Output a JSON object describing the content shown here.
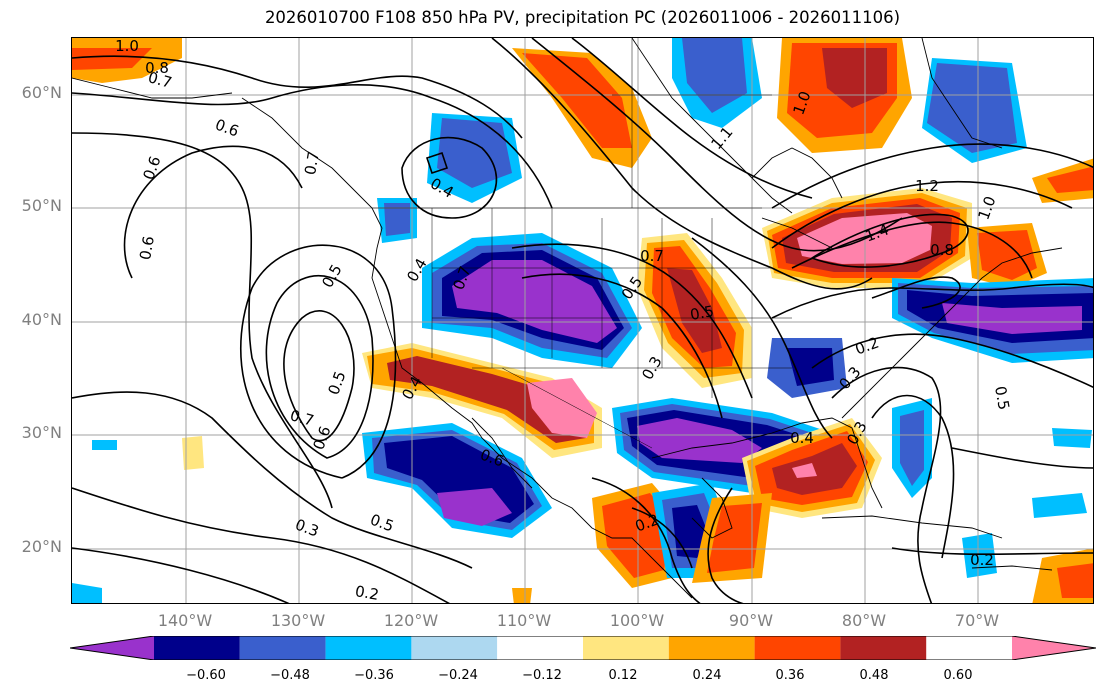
{
  "title": "2026010700 F108 850 hPa PV, precipitation PC (2026011006 - 2026011106)",
  "map": {
    "region": "North America",
    "lat_labels": [
      "60°N",
      "50°N",
      "40°N",
      "30°N",
      "20°N"
    ],
    "lon_labels": [
      "140°W",
      "130°W",
      "120°W",
      "110°W",
      "100°W",
      "90°W",
      "80°W",
      "70°W"
    ],
    "contour_labels": [
      "1.0",
      "0.8",
      "0.7",
      "0.6",
      "0.6",
      "0.6",
      "0.7",
      "0.4",
      "0.4",
      "0.5",
      "0.5",
      "0.7",
      "0.6",
      "0.4",
      "0.3",
      "0.2",
      "0.5",
      "0.6",
      "0.2",
      "0.5",
      "0.7",
      "0.5",
      "0.3",
      "0.7",
      "1.0",
      "1.1",
      "1.2",
      "1.4",
      "1.0",
      "0.8",
      "0.2",
      "0.3",
      "0.4",
      "0.5",
      "0.2",
      "0.3"
    ]
  },
  "colorbar": {
    "tick_labels": [
      "−0.60",
      "−0.48",
      "−0.36",
      "−0.24",
      "−0.12",
      "0.12",
      "0.24",
      "0.36",
      "0.48",
      "0.60"
    ],
    "colors": [
      "#9932CC",
      "#00008B",
      "#3A5FCD",
      "#00BFFF",
      "#ADD8F0",
      "#FFFFFF",
      "#FFE680",
      "#FFA500",
      "#FF4500",
      "#B22222",
      "#FF82AB"
    ]
  }
}
